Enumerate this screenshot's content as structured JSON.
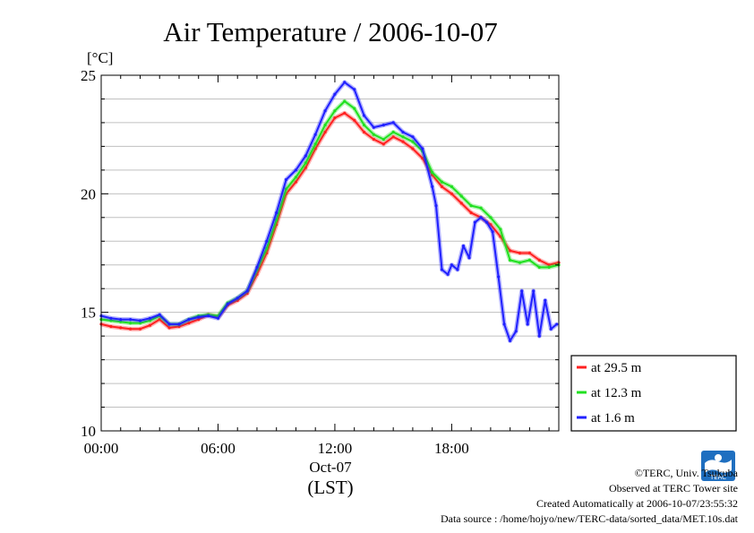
{
  "chart_data": {
    "type": "line",
    "title": "Air Temperature / 2006-10-07",
    "ylabel": "[°C]",
    "xlabel": "(LST)",
    "date_label": "Oct-07",
    "ylim": [
      10,
      25
    ],
    "xlim": [
      0,
      23.5
    ],
    "y_ticks": [
      "10",
      "15",
      "20",
      "25"
    ],
    "x_ticks": [
      "00:00",
      "06:00",
      "12:00",
      "18:00"
    ],
    "grid": true,
    "legend_position": "right-bottom",
    "series": [
      {
        "name": "at 29.5 m",
        "color": "#ff2020",
        "x": [
          0,
          0.5,
          1,
          1.5,
          2,
          2.5,
          3,
          3.5,
          4,
          4.5,
          5,
          5.5,
          6,
          6.5,
          7,
          7.5,
          8,
          8.5,
          9,
          9.5,
          10,
          10.5,
          11,
          11.5,
          12,
          12.5,
          13,
          13.5,
          14,
          14.5,
          15,
          15.5,
          16,
          16.5,
          17,
          17.5,
          18,
          18.5,
          19,
          19.5,
          20,
          20.5,
          21,
          21.5,
          22,
          22.5,
          23,
          23.5
        ],
        "y": [
          14.5,
          14.4,
          14.35,
          14.3,
          14.3,
          14.45,
          14.7,
          14.35,
          14.4,
          14.55,
          14.7,
          14.9,
          14.8,
          15.3,
          15.5,
          15.8,
          16.6,
          17.5,
          18.7,
          20.0,
          20.5,
          21.1,
          21.9,
          22.6,
          23.2,
          23.4,
          23.1,
          22.6,
          22.3,
          22.1,
          22.4,
          22.2,
          21.9,
          21.5,
          20.8,
          20.3,
          20.0,
          19.6,
          19.2,
          19.0,
          18.7,
          18.2,
          17.6,
          17.5,
          17.5,
          17.2,
          17.0,
          17.1
        ]
      },
      {
        "name": "at 12.3 m",
        "color": "#20e020",
        "x": [
          0,
          0.5,
          1,
          1.5,
          2,
          2.5,
          3,
          3.5,
          4,
          4.5,
          5,
          5.5,
          6,
          6.5,
          7,
          7.5,
          8,
          8.5,
          9,
          9.5,
          10,
          10.5,
          11,
          11.5,
          12,
          12.5,
          13,
          13.5,
          14,
          14.5,
          15,
          15.5,
          16,
          16.5,
          17,
          17.5,
          18,
          18.5,
          19,
          19.5,
          20,
          20.5,
          21,
          21.5,
          22,
          22.5,
          23,
          23.5
        ],
        "y": [
          14.7,
          14.65,
          14.6,
          14.55,
          14.55,
          14.65,
          14.85,
          14.5,
          14.5,
          14.7,
          14.85,
          14.9,
          14.85,
          15.4,
          15.6,
          15.9,
          16.8,
          17.7,
          18.9,
          20.2,
          20.7,
          21.3,
          22.1,
          22.9,
          23.5,
          23.9,
          23.6,
          22.9,
          22.5,
          22.3,
          22.6,
          22.4,
          22.2,
          21.8,
          20.9,
          20.5,
          20.3,
          19.9,
          19.5,
          19.4,
          19.0,
          18.5,
          17.2,
          17.1,
          17.2,
          16.9,
          16.9,
          17.0
        ]
      },
      {
        "name": "at 1.6 m",
        "color": "#2020ff",
        "x": [
          0,
          0.5,
          1,
          1.5,
          2,
          2.5,
          3,
          3.5,
          4,
          4.5,
          5,
          5.5,
          6,
          6.5,
          7,
          7.5,
          8,
          8.5,
          9,
          9.5,
          10,
          10.5,
          11,
          11.5,
          12,
          12.5,
          13,
          13.5,
          14,
          14.5,
          15,
          15.5,
          16,
          16.5,
          17,
          17.2,
          17.5,
          17.8,
          18,
          18.3,
          18.6,
          18.9,
          19.2,
          19.5,
          19.8,
          20.1,
          20.4,
          20.7,
          21,
          21.3,
          21.6,
          21.9,
          22.2,
          22.5,
          22.8,
          23.1,
          23.4
        ],
        "y": [
          14.85,
          14.75,
          14.7,
          14.7,
          14.65,
          14.75,
          14.9,
          14.5,
          14.5,
          14.7,
          14.8,
          14.85,
          14.75,
          15.35,
          15.6,
          15.9,
          16.9,
          18.0,
          19.2,
          20.6,
          21.0,
          21.6,
          22.5,
          23.5,
          24.2,
          24.7,
          24.4,
          23.3,
          22.8,
          22.9,
          23.0,
          22.6,
          22.4,
          21.9,
          20.3,
          19.5,
          16.8,
          16.6,
          17.0,
          16.8,
          17.8,
          17.3,
          18.8,
          19.0,
          18.8,
          18.4,
          16.5,
          14.5,
          13.8,
          14.2,
          15.9,
          14.5,
          15.9,
          14.0,
          15.5,
          14.3,
          14.5
        ]
      }
    ]
  },
  "footer": {
    "copyright": "©TERC, Univ. Tsukuba",
    "observed": "Observed at TERC Tower site",
    "created": "Created Automatically at 2006-10-07/23:55:32",
    "source": "Data source : /home/hojyo/new/TERC-data/sorted_data/MET.10s.dat",
    "logo_text": "TERC"
  }
}
